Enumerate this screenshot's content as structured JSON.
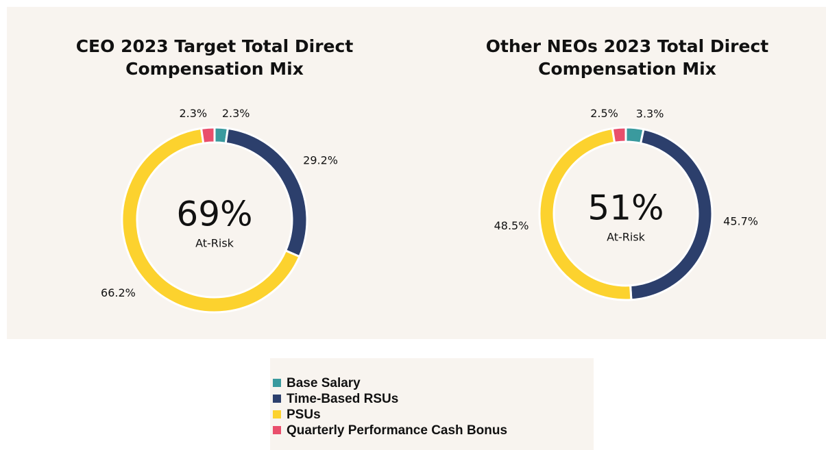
{
  "chart_data": [
    {
      "type": "donut",
      "title": "CEO 2023 Target Total Direct Compensation Mix",
      "values": [
        2.3,
        29.2,
        66.2,
        2.3
      ],
      "value_labels": [
        "2.3%",
        "29.2%",
        "66.2%",
        "2.3%"
      ],
      "colors": [
        "#3a9a9e",
        "#2c3f6c",
        "#fcd22e",
        "#e94e6b"
      ],
      "center_label": "69%",
      "center_sublabel": "At-Risk"
    },
    {
      "type": "donut",
      "title": "Other NEOs 2023 Total Direct Compensation Mix",
      "values": [
        3.3,
        45.7,
        48.5,
        2.5
      ],
      "value_labels": [
        "3.3%",
        "45.7%",
        "48.5%",
        "2.5%"
      ],
      "colors": [
        "#3a9a9e",
        "#2c3f6c",
        "#fcd22e",
        "#e94e6b"
      ],
      "center_label": "51%",
      "center_sublabel": "At-Risk"
    }
  ],
  "legend": {
    "labels": [
      "Base Salary",
      "Time-Based RSUs",
      "PSUs",
      "Quarterly Performance Cash Bonus"
    ]
  }
}
